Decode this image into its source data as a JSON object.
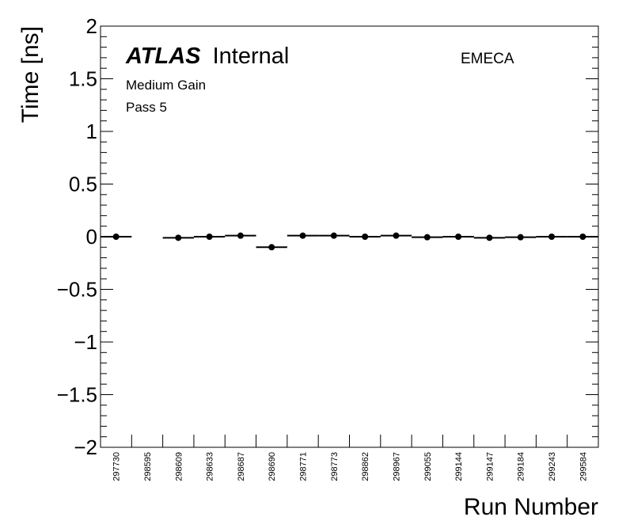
{
  "chart_data": {
    "type": "scatter",
    "title": "",
    "xlabel": "Run Number",
    "ylabel": "Time [ns]",
    "ylim": [
      -2,
      2
    ],
    "y_ticks": [
      "2",
      "1.5",
      "1",
      "0.5",
      "0",
      "−0.5",
      "−1",
      "−1.5",
      "−2"
    ],
    "y_tick_values": [
      2,
      1.5,
      1,
      0.5,
      0,
      -0.5,
      -1,
      -1.5,
      -2
    ],
    "categories": [
      "297730",
      "298595",
      "298609",
      "298633",
      "298687",
      "298690",
      "298771",
      "298773",
      "298862",
      "298967",
      "299055",
      "299144",
      "299147",
      "299184",
      "299243",
      "299584"
    ],
    "series": [
      {
        "values": [
          0.0,
          null,
          -0.01,
          0.0,
          0.01,
          -0.1,
          0.01,
          0.01,
          0.0,
          0.01,
          -0.005,
          0.0,
          -0.01,
          -0.005,
          0.0,
          0.0
        ]
      }
    ],
    "grid": false,
    "marker": "filled-circle",
    "bin_width_bars": true
  },
  "labels": {
    "atlas": "ATLAS",
    "internal": "Internal",
    "gain": "Medium Gain",
    "pass": "Pass 5",
    "region": "EMECA"
  },
  "colors": {
    "axis": "#000000",
    "marker": "#000000",
    "background": "#ffffff"
  }
}
